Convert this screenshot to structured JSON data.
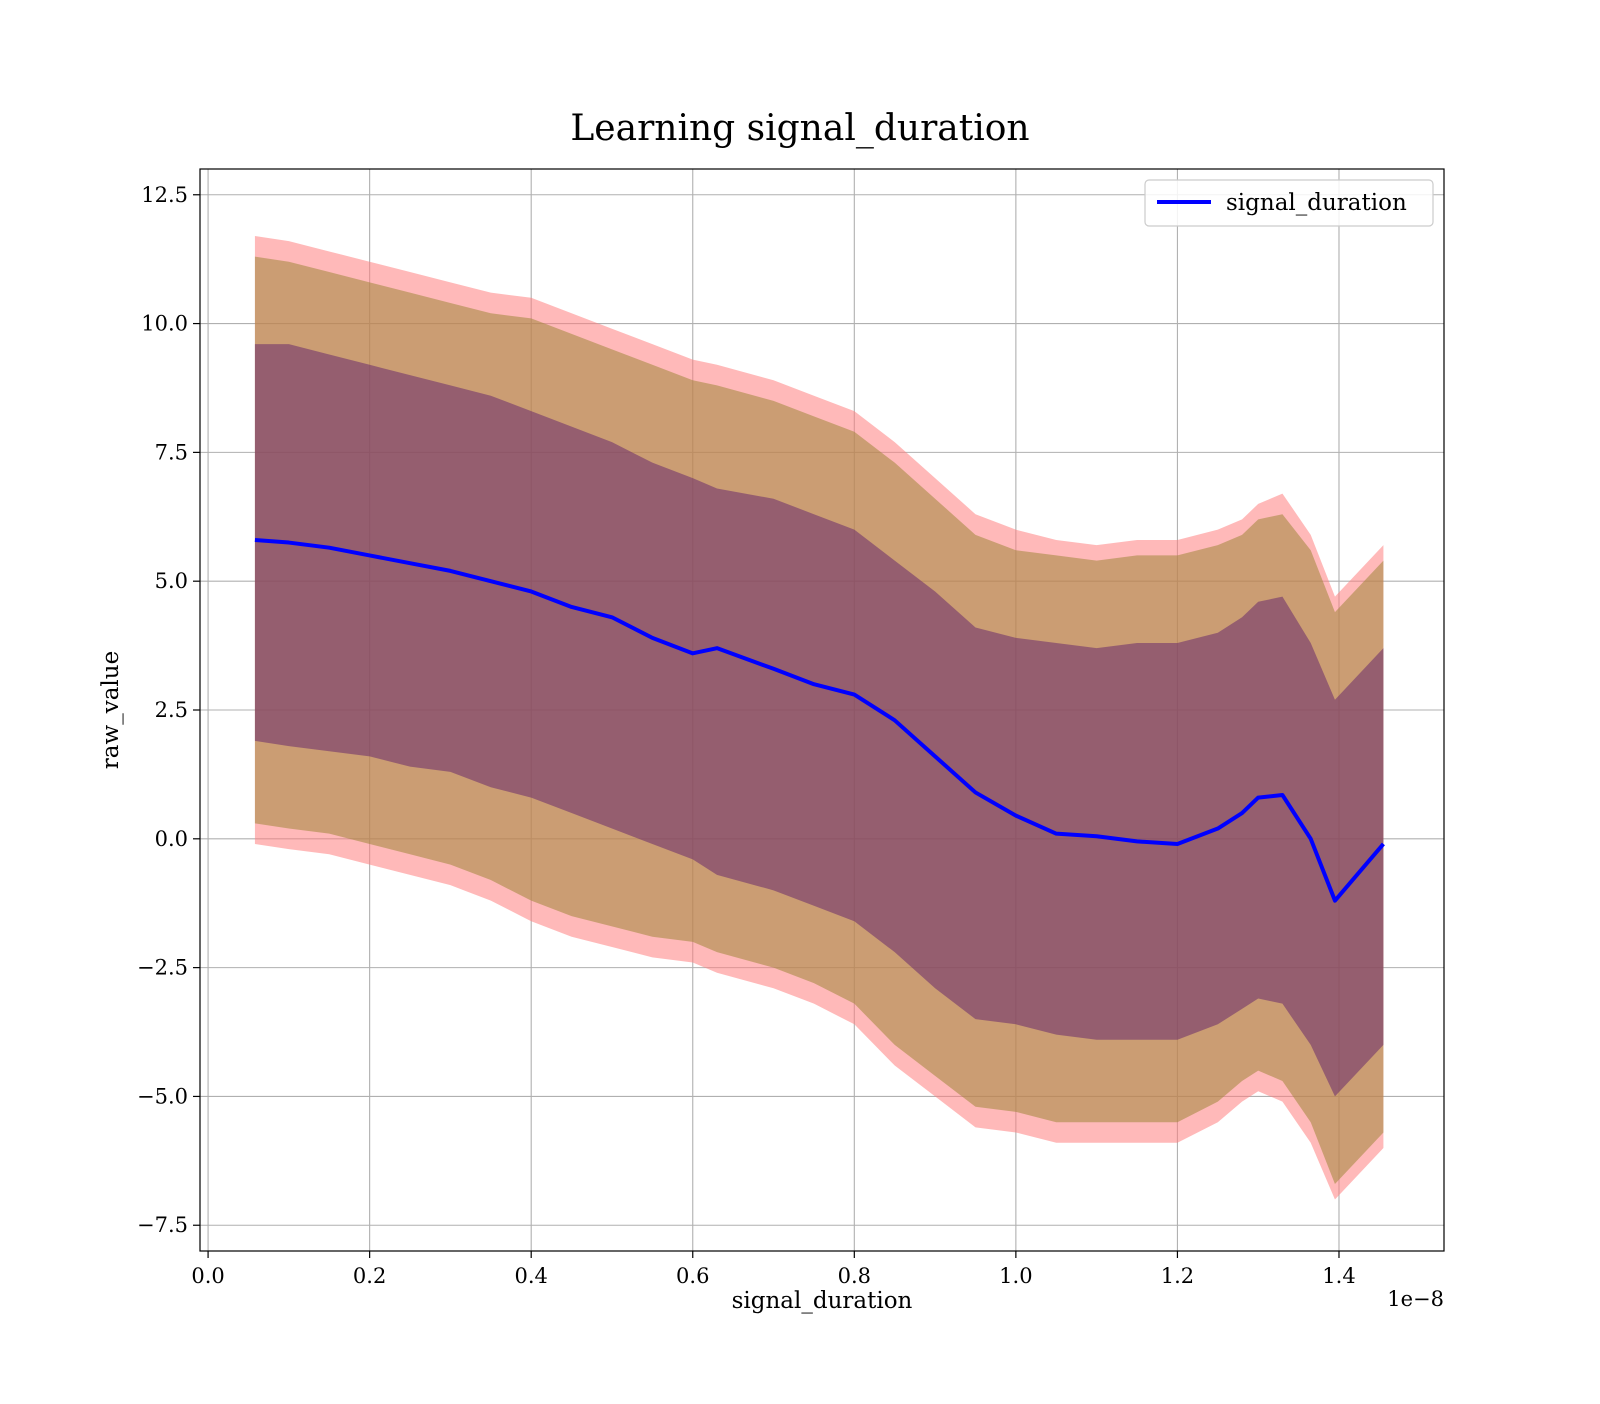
{
  "chart_data": {
    "type": "line",
    "title": "Learning signal_duration",
    "xlabel": "signal_duration",
    "ylabel": "raw_value",
    "x_offset_text": "1e−8",
    "xlim": [
      -0.01,
      1.53
    ],
    "ylim": [
      -8.0,
      13.0
    ],
    "x_ticks": [
      0.0,
      0.2,
      0.4,
      0.6,
      0.8,
      1.0,
      1.2,
      1.4
    ],
    "x_tick_labels": [
      "0.0",
      "0.2",
      "0.4",
      "0.6",
      "0.8",
      "1.0",
      "1.2",
      "1.4"
    ],
    "y_ticks": [
      -7.5,
      -5.0,
      -2.5,
      0.0,
      2.5,
      5.0,
      7.5,
      10.0,
      12.5
    ],
    "y_tick_labels": [
      "−7.5",
      "−5.0",
      "−2.5",
      "0.0",
      "2.5",
      "5.0",
      "7.5",
      "10.0",
      "12.5"
    ],
    "grid": true,
    "legend": {
      "position": "top-right",
      "entries": [
        "signal_duration"
      ]
    },
    "colors": {
      "line": "#0000ff",
      "band_outer": "#ff7f7f",
      "band_middle": "#a0863b",
      "band_inner": "#6a2a6b"
    },
    "x": [
      0.058,
      0.1,
      0.15,
      0.2,
      0.25,
      0.3,
      0.35,
      0.4,
      0.45,
      0.5,
      0.55,
      0.6,
      0.63,
      0.7,
      0.75,
      0.8,
      0.85,
      0.9,
      0.95,
      1.0,
      1.05,
      1.1,
      1.15,
      1.2,
      1.25,
      1.28,
      1.3,
      1.33,
      1.365,
      1.395,
      1.455
    ],
    "series": [
      {
        "name": "signal_duration",
        "values": [
          5.8,
          5.75,
          5.65,
          5.5,
          5.35,
          5.2,
          5.0,
          4.8,
          4.5,
          4.3,
          3.9,
          3.6,
          3.7,
          3.3,
          3.0,
          2.8,
          2.3,
          1.6,
          0.9,
          0.45,
          0.1,
          0.05,
          -0.05,
          -0.1,
          0.2,
          0.5,
          0.8,
          0.85,
          0.0,
          -1.2,
          -0.1
        ]
      }
    ],
    "bands": [
      {
        "level": "outer",
        "upper": [
          11.7,
          11.6,
          11.4,
          11.2,
          11.0,
          10.8,
          10.6,
          10.5,
          10.2,
          9.9,
          9.6,
          9.3,
          9.2,
          8.9,
          8.6,
          8.3,
          7.7,
          7.0,
          6.3,
          6.0,
          5.8,
          5.7,
          5.8,
          5.8,
          6.0,
          6.2,
          6.5,
          6.7,
          5.9,
          4.7,
          5.7
        ],
        "lower": [
          -0.1,
          -0.2,
          -0.3,
          -0.5,
          -0.7,
          -0.9,
          -1.2,
          -1.6,
          -1.9,
          -2.1,
          -2.3,
          -2.4,
          -2.6,
          -2.9,
          -3.2,
          -3.6,
          -4.4,
          -5.0,
          -5.6,
          -5.7,
          -5.9,
          -5.9,
          -5.9,
          -5.9,
          -5.5,
          -5.1,
          -4.9,
          -5.1,
          -5.9,
          -7.0,
          -6.0
        ]
      },
      {
        "level": "middle",
        "upper": [
          11.3,
          11.2,
          11.0,
          10.8,
          10.6,
          10.4,
          10.2,
          10.1,
          9.8,
          9.5,
          9.2,
          8.9,
          8.8,
          8.5,
          8.2,
          7.9,
          7.3,
          6.6,
          5.9,
          5.6,
          5.5,
          5.4,
          5.5,
          5.5,
          5.7,
          5.9,
          6.2,
          6.3,
          5.6,
          4.4,
          5.4
        ],
        "lower": [
          0.3,
          0.2,
          0.1,
          -0.1,
          -0.3,
          -0.5,
          -0.8,
          -1.2,
          -1.5,
          -1.7,
          -1.9,
          -2.0,
          -2.2,
          -2.5,
          -2.8,
          -3.2,
          -4.0,
          -4.6,
          -5.2,
          -5.3,
          -5.5,
          -5.5,
          -5.5,
          -5.5,
          -5.1,
          -4.7,
          -4.5,
          -4.7,
          -5.5,
          -6.7,
          -5.7
        ]
      },
      {
        "level": "inner",
        "upper": [
          9.6,
          9.6,
          9.4,
          9.2,
          9.0,
          8.8,
          8.6,
          8.3,
          8.0,
          7.7,
          7.3,
          7.0,
          6.8,
          6.6,
          6.3,
          6.0,
          5.4,
          4.8,
          4.1,
          3.9,
          3.8,
          3.7,
          3.8,
          3.8,
          4.0,
          4.3,
          4.6,
          4.7,
          3.8,
          2.7,
          3.7
        ],
        "lower": [
          1.9,
          1.8,
          1.7,
          1.6,
          1.4,
          1.3,
          1.0,
          0.8,
          0.5,
          0.2,
          -0.1,
          -0.4,
          -0.7,
          -1.0,
          -1.3,
          -1.6,
          -2.2,
          -2.9,
          -3.5,
          -3.6,
          -3.8,
          -3.9,
          -3.9,
          -3.9,
          -3.6,
          -3.3,
          -3.1,
          -3.2,
          -4.0,
          -5.0,
          -4.0
        ]
      }
    ]
  }
}
